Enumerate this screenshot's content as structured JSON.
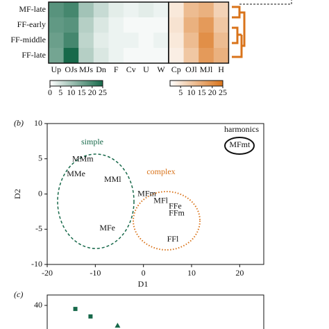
{
  "chart_data": [
    {
      "type": "heatmap",
      "rows": [
        "MF-late",
        "FF-early",
        "FF-middle",
        "FF-late"
      ],
      "blocks": [
        {
          "columns": [
            "Up",
            "OJs",
            "MJs",
            "Dn",
            "F",
            "Cv",
            "U",
            "W"
          ],
          "color": "#17694a",
          "values": [
            [
              18,
              20,
              10,
              6,
              3,
              2,
              3,
              2
            ],
            [
              17,
              18,
              8,
              4,
              2,
              1,
              1,
              1
            ],
            [
              16,
              20,
              7,
              3,
              2,
              2,
              1,
              2
            ],
            [
              15,
              25,
              8,
              4,
              2,
              1,
              1,
              1
            ]
          ],
          "clim": [
            0,
            25
          ],
          "ticks": [
            0,
            5,
            10,
            15,
            20,
            25
          ]
        },
        {
          "columns": [
            "Cp",
            "OJl",
            "MJl",
            "H"
          ],
          "color": "#d9731a",
          "values": [
            [
              4,
              12,
              14,
              8
            ],
            [
              5,
              14,
              18,
              10
            ],
            [
              4,
              12,
              20,
              12
            ],
            [
              3,
              10,
              18,
              14
            ]
          ],
          "clim": [
            0,
            25
          ],
          "ticks": [
            5,
            10,
            15,
            20,
            25
          ]
        }
      ]
    },
    {
      "type": "scatter",
      "panel": "(b)",
      "labels": [
        "MMm",
        "MMe",
        "MMl",
        "MFe",
        "MFm",
        "MFl",
        "FFe",
        "FFm",
        "FFl",
        "MFmt"
      ],
      "x": [
        -12.6,
        -14,
        -6.4,
        -7.5,
        0.7,
        3.6,
        6.6,
        6.9,
        6.1,
        20
      ],
      "y": [
        4.9,
        2.8,
        2.0,
        -4.9,
        0,
        -1.0,
        -1.8,
        -2.8,
        -6.5,
        6.9
      ],
      "group_labels": [
        "simple",
        "complex",
        "harmonics"
      ],
      "xlim": [
        -20,
        25
      ],
      "ylim": [
        -10,
        10
      ],
      "xticks": [
        -20,
        -10,
        0,
        10,
        20
      ],
      "yticks": [
        -10,
        -5,
        0,
        5,
        10
      ],
      "xlabel": "D1",
      "ylabel": "D2"
    },
    {
      "type": "scatter",
      "panel": "(c)",
      "x": [
        1.3,
        2.0,
        3.25
      ],
      "y": [
        38.3,
        34.7,
        30
      ],
      "color": "#17694a",
      "xlim": [
        0,
        10
      ],
      "ylim": [
        25,
        45
      ],
      "yticks": [
        40
      ]
    }
  ]
}
